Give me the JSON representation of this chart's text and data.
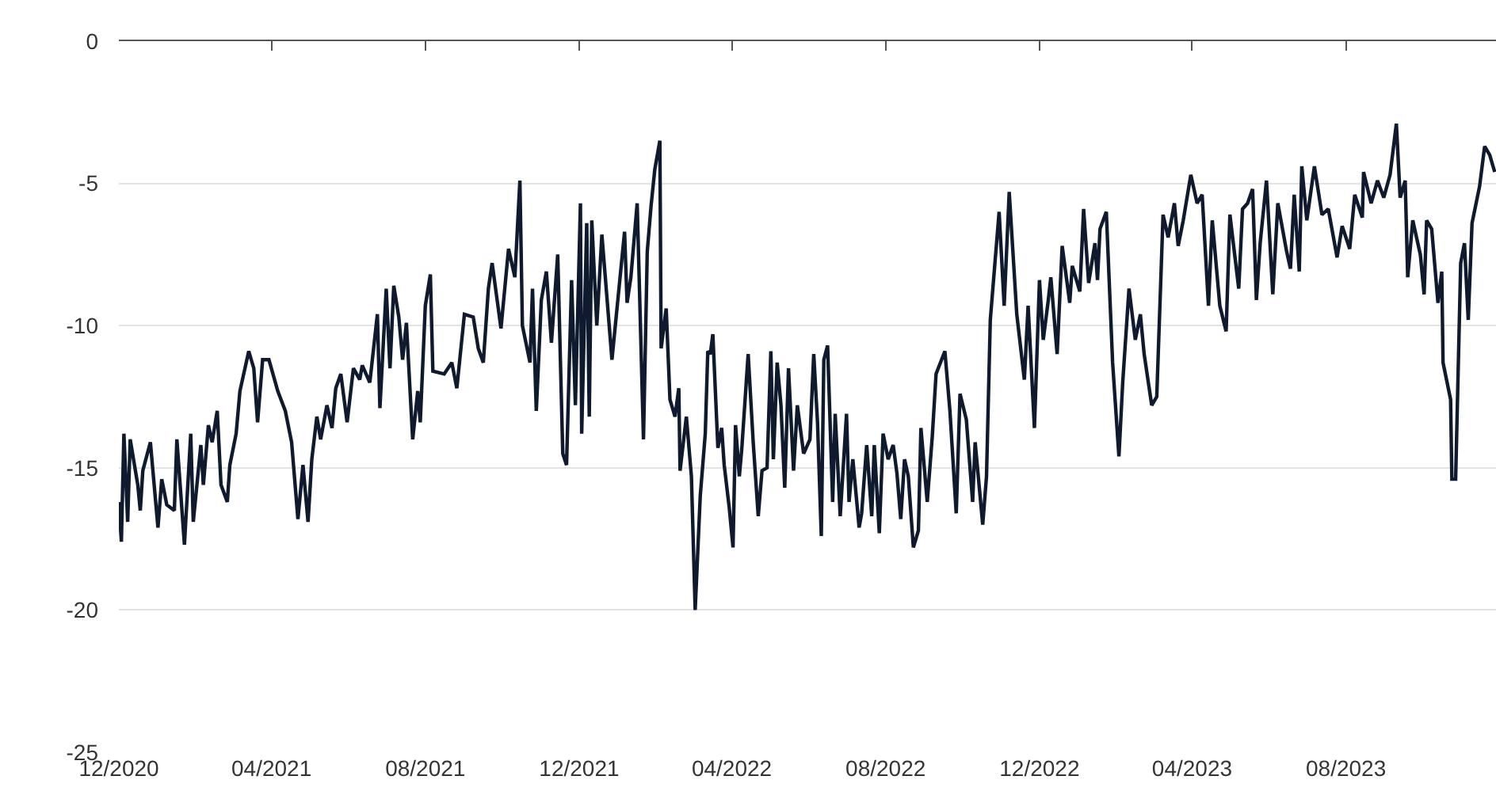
{
  "chart_data": {
    "type": "line",
    "x": [
      "2020-12-01",
      "2020-12-03",
      "2020-12-05",
      "2020-12-08",
      "2020-12-10",
      "2020-12-16",
      "2020-12-18",
      "2020-12-20",
      "2020-12-26",
      "2021-01-01",
      "2021-01-04",
      "2021-01-08",
      "2021-01-14",
      "2021-01-16",
      "2021-01-22",
      "2021-01-27",
      "2021-01-29",
      "2021-02-04",
      "2021-02-06",
      "2021-02-10",
      "2021-02-13",
      "2021-02-17",
      "2021-02-20",
      "2021-02-25",
      "2021-02-27",
      "2021-03-04",
      "2021-03-07",
      "2021-03-14",
      "2021-03-18",
      "2021-03-21",
      "2021-03-25",
      "2021-03-30",
      "2021-04-06",
      "2021-04-12",
      "2021-04-17",
      "2021-04-22",
      "2021-04-26",
      "2021-04-30",
      "2021-05-03",
      "2021-05-07",
      "2021-05-10",
      "2021-05-15",
      "2021-05-19",
      "2021-05-22",
      "2021-05-26",
      "2021-05-31",
      "2021-06-05",
      "2021-06-10",
      "2021-06-12",
      "2021-06-18",
      "2021-06-24",
      "2021-06-26",
      "2021-07-01",
      "2021-07-04",
      "2021-07-07",
      "2021-07-11",
      "2021-07-14",
      "2021-07-17",
      "2021-07-22",
      "2021-07-26",
      "2021-07-28",
      "2021-08-01",
      "2021-08-05",
      "2021-08-07",
      "2021-08-16",
      "2021-08-22",
      "2021-08-26",
      "2021-09-01",
      "2021-09-08",
      "2021-09-12",
      "2021-09-16",
      "2021-09-20",
      "2021-09-23",
      "2021-09-30",
      "2021-10-06",
      "2021-10-11",
      "2021-10-15",
      "2021-10-17",
      "2021-10-23",
      "2021-10-25",
      "2021-10-28",
      "2021-11-01",
      "2021-11-05",
      "2021-11-09",
      "2021-11-14",
      "2021-11-18",
      "2021-11-21",
      "2021-11-25",
      "2021-11-28",
      "2021-12-02",
      "2021-12-03",
      "2021-12-07",
      "2021-12-09",
      "2021-12-11",
      "2021-12-15",
      "2021-12-19",
      "2021-12-27",
      "2022-01-02",
      "2022-01-06",
      "2022-01-08",
      "2022-01-11",
      "2022-01-16",
      "2022-01-21",
      "2022-01-24",
      "2022-01-27",
      "2022-01-30",
      "2022-02-03",
      "2022-02-04",
      "2022-02-08",
      "2022-02-11",
      "2022-02-15",
      "2022-02-18",
      "2022-02-19",
      "2022-02-24",
      "2022-02-28",
      "2022-03-03",
      "2022-03-07",
      "2022-03-11",
      "2022-03-13",
      "2022-03-15",
      "2022-03-17",
      "2022-03-21",
      "2022-03-24",
      "2022-03-26",
      "2022-03-30",
      "2022-04-02",
      "2022-04-04",
      "2022-04-07",
      "2022-04-09",
      "2022-04-14",
      "2022-04-18",
      "2022-04-22",
      "2022-04-25",
      "2022-04-29",
      "2022-05-02",
      "2022-05-04",
      "2022-05-07",
      "2022-05-10",
      "2022-05-13",
      "2022-05-16",
      "2022-05-20",
      "2022-05-23",
      "2022-05-28",
      "2022-06-02",
      "2022-06-05",
      "2022-06-08",
      "2022-06-11",
      "2022-06-13",
      "2022-06-16",
      "2022-06-20",
      "2022-06-22",
      "2022-06-26",
      "2022-07-01",
      "2022-07-03",
      "2022-07-06",
      "2022-07-11",
      "2022-07-13",
      "2022-07-17",
      "2022-07-21",
      "2022-07-23",
      "2022-07-27",
      "2022-07-30",
      "2022-08-03",
      "2022-08-07",
      "2022-08-10",
      "2022-08-13",
      "2022-08-16",
      "2022-08-19",
      "2022-08-23",
      "2022-08-27",
      "2022-08-29",
      "2022-09-03",
      "2022-09-07",
      "2022-09-10",
      "2022-09-17",
      "2022-09-21",
      "2022-09-26",
      "2022-09-29",
      "2022-10-04",
      "2022-10-09",
      "2022-10-11",
      "2022-10-17",
      "2022-10-20",
      "2022-10-23",
      "2022-10-30",
      "2022-11-03",
      "2022-11-07",
      "2022-11-13",
      "2022-11-19",
      "2022-11-22",
      "2022-11-27",
      "2022-12-01",
      "2022-12-04",
      "2022-12-08",
      "2022-12-10",
      "2022-12-15",
      "2022-12-19",
      "2022-12-25",
      "2022-12-27",
      "2023-01-02",
      "2023-01-05",
      "2023-01-09",
      "2023-01-14",
      "2023-01-16",
      "2023-01-18",
      "2023-01-23",
      "2023-01-28",
      "2023-02-02",
      "2023-02-05",
      "2023-02-10",
      "2023-02-15",
      "2023-02-19",
      "2023-02-22",
      "2023-02-28",
      "2023-03-04",
      "2023-03-09",
      "2023-03-13",
      "2023-03-18",
      "2023-03-21",
      "2023-03-25",
      "2023-03-31",
      "2023-04-05",
      "2023-04-09",
      "2023-04-14",
      "2023-04-17",
      "2023-04-23",
      "2023-04-28",
      "2023-05-01",
      "2023-05-08",
      "2023-05-11",
      "2023-05-15",
      "2023-05-19",
      "2023-05-22",
      "2023-05-25",
      "2023-05-30",
      "2023-06-04",
      "2023-06-08",
      "2023-06-15",
      "2023-06-18",
      "2023-06-21",
      "2023-06-25",
      "2023-06-27",
      "2023-07-01",
      "2023-07-07",
      "2023-07-13",
      "2023-07-18",
      "2023-07-25",
      "2023-07-29",
      "2023-08-04",
      "2023-08-08",
      "2023-08-14",
      "2023-08-15",
      "2023-08-21",
      "2023-08-26",
      "2023-08-31",
      "2023-09-05",
      "2023-09-10",
      "2023-09-13",
      "2023-09-17",
      "2023-09-19",
      "2023-09-23",
      "2023-09-29",
      "2023-10-02",
      "2023-10-04",
      "2023-10-08",
      "2023-10-13",
      "2023-10-16",
      "2023-10-17",
      "2023-10-23",
      "2023-10-24",
      "2023-10-27",
      "2023-10-31",
      "2023-11-03",
      "2023-11-06",
      "2023-11-09",
      "2023-11-15",
      "2023-11-19",
      "2023-11-23",
      "2023-11-27"
    ],
    "series": [
      {
        "color": "#0f1a2e",
        "values": [
          -16.2,
          -17.6,
          -13.8,
          -16.9,
          -14.0,
          -15.6,
          -16.5,
          -15.1,
          -14.1,
          -17.1,
          -15.4,
          -16.3,
          -16.5,
          -14.0,
          -17.7,
          -13.8,
          -16.9,
          -14.2,
          -15.6,
          -13.5,
          -14.1,
          -13.0,
          -15.6,
          -16.2,
          -14.9,
          -13.8,
          -12.3,
          -10.9,
          -11.5,
          -13.4,
          -11.2,
          -11.2,
          -12.3,
          -13.0,
          -14.1,
          -16.8,
          -14.9,
          -16.9,
          -14.7,
          -13.2,
          -14.0,
          -12.8,
          -13.6,
          -12.2,
          -11.7,
          -13.4,
          -11.5,
          -11.9,
          -11.4,
          -12.0,
          -9.6,
          -12.9,
          -8.7,
          -11.5,
          -8.6,
          -9.7,
          -11.2,
          -9.9,
          -14.0,
          -12.3,
          -13.4,
          -9.3,
          -8.2,
          -11.6,
          -11.7,
          -11.3,
          -12.2,
          -9.6,
          -9.7,
          -10.8,
          -11.3,
          -8.7,
          -7.8,
          -10.1,
          -7.3,
          -8.3,
          -4.9,
          -10.0,
          -11.3,
          -8.7,
          -13.0,
          -9.1,
          -8.1,
          -10.6,
          -7.5,
          -14.5,
          -14.9,
          -8.4,
          -12.8,
          -5.7,
          -13.8,
          -6.4,
          -13.2,
          -6.3,
          -10.0,
          -6.8,
          -11.2,
          -8.5,
          -6.7,
          -9.2,
          -8.3,
          -5.7,
          -14.0,
          -7.4,
          -5.8,
          -4.5,
          -3.5,
          -10.8,
          -9.4,
          -12.6,
          -13.2,
          -12.2,
          -15.1,
          -13.2,
          -15.3,
          -20.0,
          -16.0,
          -13.8,
          -10.9,
          -11.0,
          -10.3,
          -14.3,
          -13.6,
          -14.9,
          -16.4,
          -17.8,
          -13.5,
          -15.3,
          -14.3,
          -11.0,
          -14.1,
          -16.7,
          -15.1,
          -15.0,
          -10.9,
          -14.7,
          -11.3,
          -12.8,
          -15.7,
          -11.5,
          -15.1,
          -12.8,
          -14.5,
          -14.0,
          -11.0,
          -13.4,
          -17.4,
          -11.2,
          -10.7,
          -16.2,
          -13.1,
          -16.7,
          -13.1,
          -16.2,
          -14.7,
          -17.1,
          -16.6,
          -14.2,
          -16.7,
          -14.2,
          -17.3,
          -13.8,
          -14.7,
          -14.2,
          -15.2,
          -16.8,
          -14.7,
          -15.3,
          -17.8,
          -17.2,
          -13.6,
          -16.2,
          -13.9,
          -11.7,
          -10.9,
          -13.0,
          -16.6,
          -12.4,
          -13.3,
          -16.2,
          -14.1,
          -17.0,
          -15.3,
          -9.8,
          -6.0,
          -9.3,
          -5.3,
          -9.6,
          -11.9,
          -9.3,
          -13.6,
          -8.4,
          -10.5,
          -9.1,
          -8.3,
          -11.0,
          -7.2,
          -9.2,
          -7.9,
          -8.8,
          -5.9,
          -8.5,
          -7.1,
          -8.4,
          -6.6,
          -6.0,
          -11.3,
          -14.6,
          -12.0,
          -8.7,
          -10.5,
          -9.6,
          -11.0,
          -12.8,
          -12.5,
          -6.1,
          -6.9,
          -5.7,
          -7.2,
          -6.3,
          -4.7,
          -5.7,
          -5.4,
          -9.3,
          -6.3,
          -9.3,
          -10.2,
          -6.1,
          -8.7,
          -5.9,
          -5.7,
          -5.2,
          -9.1,
          -7.1,
          -4.9,
          -8.9,
          -5.7,
          -7.4,
          -8.0,
          -5.4,
          -8.1,
          -4.4,
          -6.3,
          -4.4,
          -6.1,
          -5.9,
          -7.6,
          -6.5,
          -7.3,
          -5.4,
          -6.2,
          -4.6,
          -5.7,
          -4.9,
          -5.5,
          -4.7,
          -2.9,
          -5.5,
          -4.9,
          -8.3,
          -6.3,
          -7.5,
          -8.9,
          -6.3,
          -6.6,
          -9.2,
          -8.1,
          -11.3,
          -12.6,
          -15.4,
          -15.4,
          -7.8,
          -7.1,
          -9.8,
          -6.4,
          -5.1,
          -3.7,
          -4.0,
          -4.6
        ]
      }
    ],
    "xlim": [
      "2020-12-01",
      "2023-11-28"
    ],
    "xticks": [
      {
        "value": "2020-12-01",
        "label": "12/2020"
      },
      {
        "value": "2021-04-01",
        "label": "04/2021"
      },
      {
        "value": "2021-08-01",
        "label": "08/2021"
      },
      {
        "value": "2021-12-01",
        "label": "12/2021"
      },
      {
        "value": "2022-04-01",
        "label": "04/2022"
      },
      {
        "value": "2022-08-01",
        "label": "08/2022"
      },
      {
        "value": "2022-12-01",
        "label": "12/2022"
      },
      {
        "value": "2023-04-01",
        "label": "04/2023"
      },
      {
        "value": "2023-08-01",
        "label": "08/2023"
      }
    ],
    "ylim": [
      -25,
      0
    ],
    "yticks": [
      0,
      -5,
      -10,
      -15,
      -20,
      -25
    ],
    "grid": "y",
    "marker": "none",
    "line_style": "solid"
  }
}
